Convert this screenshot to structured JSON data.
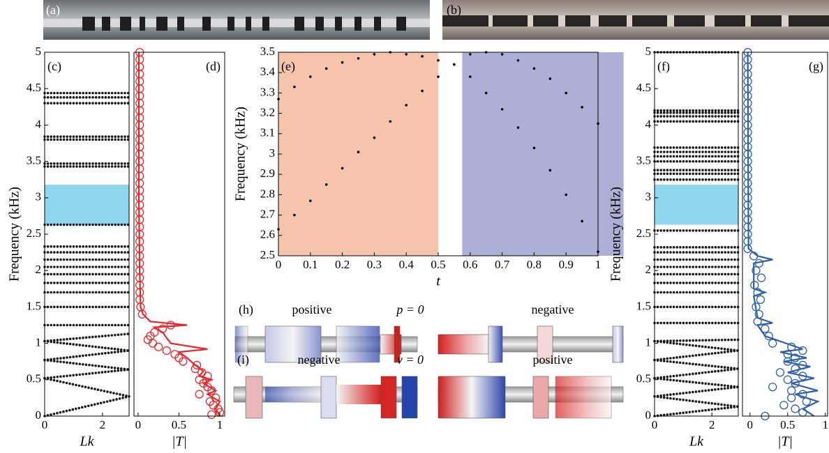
{
  "chart_data": [
    {
      "type": "bands",
      "label": "(c)",
      "ylabel": "Frequency (kHz)",
      "xlabel": "Lk",
      "color": "#1a1a1a",
      "xlim": [
        0,
        2.92
      ],
      "ylim": [
        0,
        5
      ],
      "xticks": [
        0,
        2
      ],
      "yticks": [
        0,
        0.5,
        1,
        1.5,
        2,
        2.5,
        3,
        3.5,
        4,
        4.5,
        5
      ],
      "band_gap": {
        "range": [
          2.63,
          3.18
        ],
        "color": "#8fd6f0"
      },
      "x": [
        0,
        2.92
      ],
      "series": [
        {
          "values": [
            0,
            0.27
          ]
        },
        {
          "values": [
            0.52,
            0.27
          ]
        },
        {
          "values": [
            0.52,
            0.64
          ]
        },
        {
          "values": [
            0.77,
            0.64
          ]
        },
        {
          "values": [
            0.77,
            0.9
          ]
        },
        {
          "values": [
            1.03,
            0.9
          ]
        },
        {
          "values": [
            1.03,
            1.13
          ]
        },
        {
          "values": [
            1.25,
            1.25
          ]
        },
        {
          "values": [
            1.5,
            1.5
          ]
        },
        {
          "values": [
            1.7,
            1.7
          ]
        },
        {
          "values": [
            1.83,
            1.83
          ]
        },
        {
          "values": [
            1.95,
            1.95
          ]
        },
        {
          "values": [
            2.05,
            2.05
          ]
        },
        {
          "values": [
            2.15,
            2.15
          ]
        },
        {
          "values": [
            2.25,
            2.25
          ]
        },
        {
          "values": [
            2.33,
            2.33
          ]
        },
        {
          "values": [
            2.63,
            2.63
          ]
        },
        {
          "values": [
            3.43,
            3.43
          ]
        },
        {
          "values": [
            3.47,
            3.47
          ]
        },
        {
          "values": [
            3.8,
            3.8
          ]
        },
        {
          "values": [
            3.84,
            3.84
          ]
        },
        {
          "values": [
            4.3,
            4.3
          ]
        },
        {
          "values": [
            4.38,
            4.38
          ]
        },
        {
          "values": [
            4.44,
            4.44
          ]
        }
      ]
    },
    {
      "type": "line",
      "label": "(d)",
      "xlabel": "|T|",
      "color": "#e8262a",
      "xlim": [
        -0.05,
        1.06
      ],
      "ylim": [
        0,
        5
      ],
      "xticks": [
        0,
        0.5,
        1
      ],
      "series": [
        {
          "style": "line",
          "x": [
            0.01,
            0.01,
            0.02,
            0.03,
            0.06,
            0.15,
            0.6,
            0.2,
            0.3,
            0.4,
            0.85,
            0.5,
            0.6,
            0.7,
            0.8,
            0.75,
            0.9,
            0.8,
            0.95,
            0.85,
            1.0,
            0.95,
            1.0
          ],
          "values": [
            5,
            3,
            2,
            1.5,
            1.4,
            1.3,
            1.25,
            1.22,
            1.15,
            1.0,
            0.92,
            0.88,
            0.8,
            0.7,
            0.62,
            0.55,
            0.5,
            0.45,
            0.35,
            0.3,
            0.2,
            0.1,
            0
          ]
        },
        {
          "style": "marker",
          "x": [
            0.02,
            0.02,
            0.02,
            0.02,
            0.02,
            0.02,
            0.02,
            0.02,
            0.02,
            0.02,
            0.02,
            0.02,
            0.02,
            0.02,
            0.02,
            0.02,
            0.02,
            0.02,
            0.02,
            0.02,
            0.02,
            0.02,
            0.02,
            0.02,
            0.02,
            0.02,
            0.02,
            0.02,
            0.02,
            0.02,
            0.02,
            0.02,
            0.02,
            0.02,
            0.02,
            0.03,
            0.05,
            0.4,
            0.3,
            0.2,
            0.15,
            0.12,
            0.18,
            0.25,
            0.35,
            0.45,
            0.5,
            0.55,
            0.72,
            0.7,
            0.78,
            0.85,
            0.75,
            0.8,
            0.85,
            0.9,
            0.75,
            0.95,
            0.88,
            0.92,
            0.98,
            1.0,
            0.9
          ],
          "values": [
            5,
            4.9,
            4.8,
            4.7,
            4.6,
            4.5,
            4.4,
            4.3,
            4.2,
            4.1,
            4.0,
            3.9,
            3.8,
            3.7,
            3.6,
            3.5,
            3.4,
            3.3,
            3.2,
            3.1,
            3.0,
            2.9,
            2.8,
            2.7,
            2.6,
            2.5,
            2.4,
            2.3,
            2.2,
            2.1,
            2.0,
            1.9,
            1.8,
            1.7,
            1.6,
            1.5,
            1.4,
            1.25,
            1.2,
            1.15,
            1.1,
            1.05,
            1.0,
            0.95,
            0.9,
            0.85,
            0.8,
            0.75,
            0.7,
            0.65,
            0.6,
            0.55,
            0.5,
            0.45,
            0.4,
            0.35,
            0.3,
            0.25,
            0.2,
            0.15,
            0.1,
            0.05,
            0.02
          ]
        }
      ]
    },
    {
      "type": "scatter",
      "label": "(e)",
      "ylabel": "Frequency (kHz)",
      "xlabel": "t",
      "color": "#000000",
      "xlim": [
        0,
        1
      ],
      "ylim": [
        2.5,
        3.5
      ],
      "xticks": [
        0,
        0.1,
        0.2,
        0.3,
        0.4,
        0.5,
        0.6,
        0.7,
        0.8,
        0.9,
        1
      ],
      "yticks": [
        2.5,
        2.6,
        2.7,
        2.8,
        2.9,
        3,
        3.1,
        3.2,
        3.3,
        3.4,
        3.5
      ],
      "regions": [
        {
          "range": [
            0,
            0.5
          ],
          "color": "#f6c3ab"
        },
        {
          "range": [
            0.575,
            1.08
          ],
          "color": "#aeafd7"
        }
      ],
      "x": [
        0,
        0.05,
        0.1,
        0.15,
        0.2,
        0.25,
        0.3,
        0.35,
        0.4,
        0.45,
        0.5,
        0.55,
        0.6,
        0.65,
        0.7,
        0.75,
        0.8,
        0.85,
        0.9,
        0.95,
        1
      ],
      "series": [
        {
          "values": [
            3.27,
            3.33,
            3.38,
            3.42,
            3.45,
            3.47,
            3.49,
            3.5,
            3.49,
            3.48,
            3.46,
            3.44,
            3.49,
            3.5,
            3.49,
            3.46,
            3.42,
            3.37,
            3.3,
            3.23,
            3.15
          ]
        },
        {
          "values": [
            2.63,
            2.7,
            2.77,
            2.85,
            2.93,
            3.01,
            3.08,
            3.16,
            3.24,
            3.31,
            3.38,
            3.44,
            3.38,
            3.3,
            3.22,
            3.13,
            3.03,
            2.92,
            2.8,
            2.67,
            2.52
          ]
        }
      ]
    },
    {
      "type": "bands",
      "label": "(f)",
      "ylabel": "Frequency (kHz)",
      "xlabel": "Lk",
      "color": "#1a1a1a",
      "xlim": [
        0,
        2.92
      ],
      "ylim": [
        0,
        5
      ],
      "xticks": [
        0,
        2
      ],
      "yticks": [
        0,
        0.5,
        1,
        1.5,
        2,
        2.5,
        3,
        3.5,
        4,
        4.5,
        5
      ],
      "band_gap": {
        "range": [
          2.63,
          3.18
        ],
        "color": "#8fd6f0"
      },
      "x": [
        0,
        2.92
      ],
      "series": [
        {
          "values": [
            0,
            0.13
          ]
        },
        {
          "values": [
            0.27,
            0.13
          ]
        },
        {
          "values": [
            0.27,
            0.4
          ]
        },
        {
          "values": [
            0.52,
            0.4
          ]
        },
        {
          "values": [
            0.52,
            0.65
          ]
        },
        {
          "values": [
            0.77,
            0.65
          ]
        },
        {
          "values": [
            0.77,
            0.9
          ]
        },
        {
          "values": [
            1.03,
            0.9
          ]
        },
        {
          "values": [
            1.03,
            1.05
          ]
        },
        {
          "values": [
            1.28,
            1.28
          ]
        },
        {
          "values": [
            1.5,
            1.5
          ]
        },
        {
          "values": [
            1.7,
            1.7
          ]
        },
        {
          "values": [
            1.83,
            1.83
          ]
        },
        {
          "values": [
            1.95,
            1.95
          ]
        },
        {
          "values": [
            2.05,
            2.05
          ]
        },
        {
          "values": [
            2.15,
            2.15
          ]
        },
        {
          "values": [
            2.25,
            2.25
          ]
        },
        {
          "values": [
            2.32,
            2.32
          ]
        },
        {
          "values": [
            2.55,
            2.55
          ]
        },
        {
          "values": [
            3.25,
            3.25
          ]
        },
        {
          "values": [
            3.33,
            3.33
          ]
        },
        {
          "values": [
            3.38,
            3.38
          ]
        },
        {
          "values": [
            3.5,
            3.5
          ]
        },
        {
          "values": [
            3.57,
            3.57
          ]
        },
        {
          "values": [
            3.63,
            3.63
          ]
        },
        {
          "values": [
            3.69,
            3.69
          ]
        },
        {
          "values": [
            4.05,
            4.05
          ]
        },
        {
          "values": [
            4.12,
            4.12
          ]
        },
        {
          "values": [
            4.17,
            4.17
          ]
        },
        {
          "values": [
            4.2,
            4.2
          ]
        },
        {
          "values": [
            5,
            5
          ]
        }
      ]
    },
    {
      "type": "line",
      "label": "(g)",
      "xlabel": "|T|",
      "color": "#2e5fae",
      "xlim": [
        -0.1,
        1.03
      ],
      "ylim": [
        0,
        5
      ],
      "xticks": [
        0,
        0.5,
        1
      ],
      "series": [
        {
          "style": "line",
          "x": [
            -0.03,
            -0.02,
            0.1,
            0.3,
            0.05,
            0.05,
            0.2,
            0.05,
            0.1,
            0.3,
            0.1,
            0.2,
            0.7,
            0.4,
            0.75,
            0.45,
            0.8,
            0.5,
            0.85,
            0.55,
            0.9,
            0.6,
            0.9,
            0.7,
            0.85
          ],
          "values": [
            5,
            2.3,
            2.2,
            2.15,
            2.1,
            1.75,
            1.7,
            1.65,
            1.35,
            1.28,
            1.25,
            1.1,
            0.92,
            0.88,
            0.8,
            0.75,
            0.68,
            0.6,
            0.52,
            0.45,
            0.35,
            0.3,
            0.2,
            0.1,
            0
          ]
        },
        {
          "style": "marker",
          "x": [
            -0.03,
            -0.03,
            -0.03,
            -0.03,
            -0.03,
            -0.03,
            -0.03,
            -0.03,
            -0.03,
            -0.03,
            -0.03,
            -0.03,
            -0.03,
            -0.03,
            -0.03,
            -0.03,
            -0.03,
            -0.03,
            -0.03,
            -0.03,
            -0.03,
            -0.03,
            -0.03,
            -0.03,
            -0.03,
            -0.03,
            -0.03,
            -0.03,
            0.05,
            0.12,
            0.08,
            0.15,
            0.06,
            0.1,
            0.14,
            0.08,
            0.12,
            0.1,
            0.2,
            0.25,
            0.3,
            0.55,
            0.7,
            0.5,
            0.6,
            0.5,
            0.7,
            0.6,
            0.4,
            0.7,
            0.5,
            0.6,
            0.3,
            0.55,
            0.7,
            0.55,
            0.75,
            0.45,
            0.6,
            0.7,
            0.2
          ],
          "values": [
            5,
            4.9,
            4.8,
            4.7,
            4.6,
            4.5,
            4.4,
            4.3,
            4.2,
            4.1,
            4.0,
            3.9,
            3.8,
            3.7,
            3.6,
            3.5,
            3.4,
            3.3,
            3.2,
            3.1,
            3.0,
            2.9,
            2.8,
            2.7,
            2.6,
            2.5,
            2.4,
            2.3,
            2.2,
            2.1,
            2.0,
            1.9,
            1.8,
            1.7,
            1.6,
            1.5,
            1.4,
            1.3,
            1.2,
            1.1,
            1.0,
            0.95,
            0.9,
            0.85,
            0.8,
            0.75,
            0.7,
            0.65,
            0.6,
            0.55,
            0.5,
            0.45,
            0.4,
            0.35,
            0.3,
            0.25,
            0.2,
            0.15,
            0.1,
            0.05,
            0.0
          ]
        }
      ]
    }
  ],
  "figure": {
    "photo_labels": [
      "(a)",
      "(b)"
    ],
    "fields": [
      {
        "label": "(h)",
        "left": "positive",
        "middle": "p = 0",
        "right": "negative"
      },
      {
        "label": "(i)",
        "left": "negative",
        "middle": "v = 0",
        "right": "positive"
      }
    ]
  }
}
